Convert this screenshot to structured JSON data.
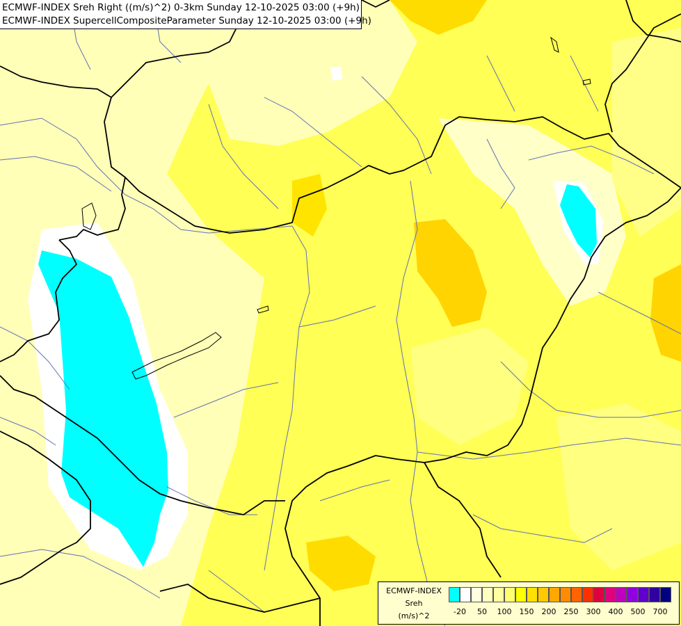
{
  "header": {
    "line1": "ECMWF-INDEX Sreh Right ((m/s)^2) 0-3km Sunday 12-10-2025 03:00 (+9h)",
    "line2": "ECMWF-INDEX SupercellCompositeParameter Sunday 12-10-2025 03:00 (+9h)"
  },
  "legend": {
    "line1": "ECMWF-INDEX",
    "line2": "Sreh",
    "line3": "(m/s)^2",
    "colors": [
      "#00ffff",
      "#ffffff",
      "#ffffe0",
      "#ffffc0",
      "#ffffa0",
      "#ffff70",
      "#ffff00",
      "#ffe000",
      "#ffc800",
      "#ffa800",
      "#ff8c00",
      "#ff6400",
      "#ff3000",
      "#e00040",
      "#e00080",
      "#c000c0",
      "#9000e0",
      "#6000d0",
      "#3000a0",
      "#000080"
    ],
    "ticks": [
      "-20",
      "50",
      "100",
      "150",
      "200",
      "250",
      "300",
      "400",
      "500",
      "700"
    ]
  },
  "colors": {
    "field_base": "#ffff66",
    "field_light": "#ffffc0",
    "field_pale": "#ffffe0",
    "field_orange": "#ffd200",
    "low_cyan": "#00ffff",
    "river": "#5a6ab0",
    "border": "#000000"
  }
}
